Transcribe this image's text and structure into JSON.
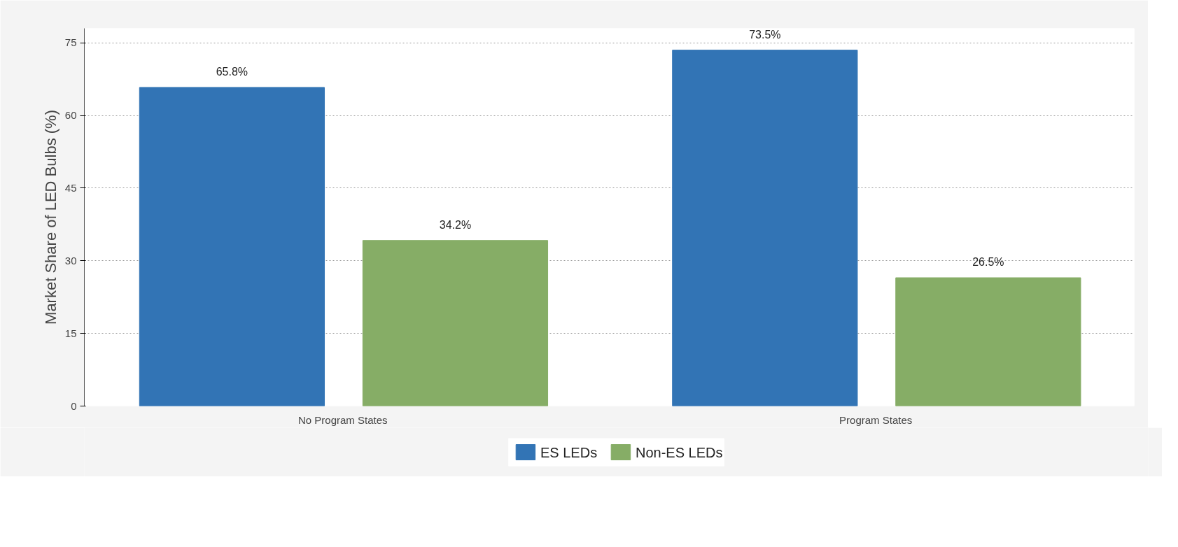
{
  "chart_data": {
    "type": "bar",
    "ylabel": "Market Share of LED Bulbs (%)",
    "categories": [
      "No Program States",
      "Program States"
    ],
    "series": [
      {
        "name": "ES LEDs",
        "color": "#3274b5",
        "values": [
          65.8,
          73.5
        ],
        "value_labels": [
          "65.8%",
          "73.5%"
        ]
      },
      {
        "name": "Non-ES LEDs",
        "color": "#86ad66",
        "values": [
          34.2,
          26.5
        ],
        "value_labels": [
          "34.2%",
          "26.5%"
        ]
      }
    ],
    "ylim": [
      0,
      78
    ],
    "yticks": [
      0,
      15,
      30,
      45,
      60,
      75
    ],
    "grid": "y",
    "legend": "bottom"
  }
}
